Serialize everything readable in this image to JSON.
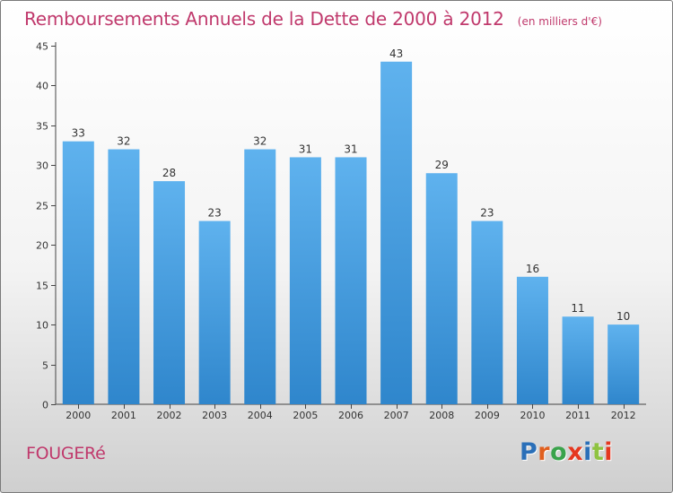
{
  "header": {
    "title": "Remboursements Annuels de la Dette de 2000 à 2012",
    "subtitle": "(en milliers d'€)"
  },
  "footer": {
    "place": "FOUGERé",
    "logo_text": "Proxiti",
    "logo_colors": [
      "#2a6fb8",
      "#e05f1e",
      "#3aa34b",
      "#e5371f",
      "#2a6fb8",
      "#8fc341",
      "#e5371f"
    ]
  },
  "colors": {
    "bar": "#4a9fe0",
    "bar_light": "#5fb2ee",
    "bar_dark": "#2f86cc",
    "title": "#c0396c"
  },
  "chart_data": {
    "type": "bar",
    "categories": [
      "2000",
      "2001",
      "2002",
      "2003",
      "2004",
      "2005",
      "2006",
      "2007",
      "2008",
      "2009",
      "2010",
      "2011",
      "2012"
    ],
    "values": [
      33,
      32,
      28,
      23,
      32,
      31,
      31,
      43,
      29,
      23,
      16,
      11,
      10
    ],
    "data_labels": [
      "33",
      "32",
      "28",
      "23",
      "32",
      "31",
      "31",
      "43",
      "29",
      "23",
      "16",
      "11",
      "10"
    ],
    "ylim": [
      0,
      45
    ],
    "yticks": [
      0,
      5,
      10,
      15,
      20,
      25,
      30,
      35,
      40,
      45
    ],
    "grid": false,
    "legend": "none"
  }
}
